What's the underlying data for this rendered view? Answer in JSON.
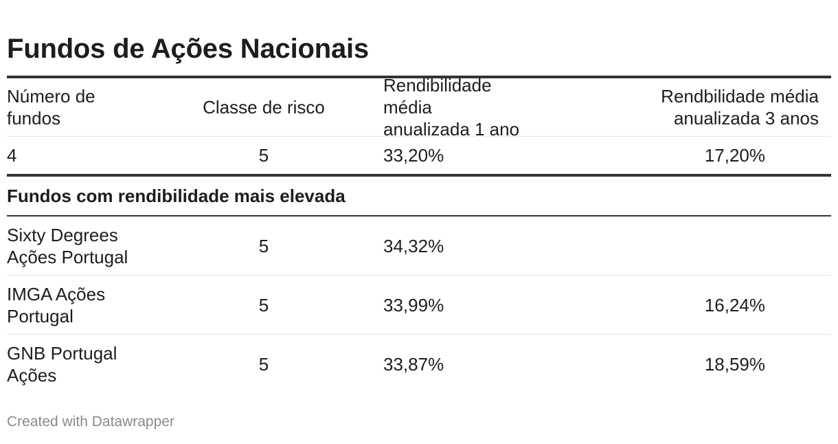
{
  "title": "Fundos de Ações Nacionais",
  "header": {
    "col1_line1": "Número de",
    "col1_line2": "fundos",
    "col2": "Classe de risco",
    "col3_line1": "Rendibilidade média",
    "col3_line2": "anualizada 1 ano",
    "col4_line1": "Rendbilidade média",
    "col4_line2": "anualizada 3 anos"
  },
  "summary": {
    "num_funds": "4",
    "risk_class": "5",
    "return_1y": "33,20%",
    "return_3y": "17,20%"
  },
  "section_title": "Fundos com rendibilidade mais elevada",
  "funds": [
    {
      "name_line1": "Sixty Degrees",
      "name_line2": "Ações Portugal",
      "risk_class": "5",
      "return_1y": "34,32%",
      "return_3y": ""
    },
    {
      "name_line1": "IMGA Ações",
      "name_line2": "Portugal",
      "risk_class": "5",
      "return_1y": "33,99%",
      "return_3y": "16,24%"
    },
    {
      "name_line1": "GNB Portugal",
      "name_line2": "Ações",
      "risk_class": "5",
      "return_1y": "33,87%",
      "return_3y": "18,59%"
    }
  ],
  "footer": "Created with Datawrapper"
}
